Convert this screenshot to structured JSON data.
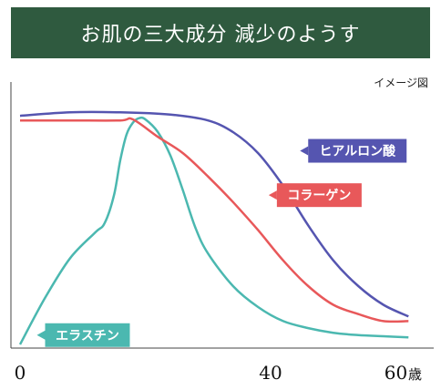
{
  "title": "お肌の三大成分 減少のようす",
  "note": "イメージ図",
  "chart_data": {
    "type": "line",
    "title": "お肌の三大成分 減少のようす",
    "xlabel": "歳",
    "ylabel": "",
    "xlim": [
      0,
      64
    ],
    "ylim": [
      0,
      100
    ],
    "x_ticks": [
      0,
      40,
      60
    ],
    "grid": false,
    "series": [
      {
        "name": "ヒアルロン酸",
        "color": "#5555b0",
        "x": [
          0,
          8,
          16,
          24,
          30,
          34,
          38,
          42,
          46,
          50,
          54,
          58,
          62
        ],
        "y": [
          98,
          99.5,
          99.5,
          98.5,
          96,
          91,
          82,
          68,
          51,
          36,
          25,
          17,
          12
        ]
      },
      {
        "name": "コラーゲン",
        "color": "#e8585a",
        "x": [
          0,
          8,
          16,
          18,
          22,
          26,
          30,
          34,
          38,
          42,
          46,
          50,
          54,
          58,
          62
        ],
        "y": [
          96,
          96,
          96,
          96.5,
          89,
          82,
          72,
          61,
          49,
          36,
          25,
          17,
          13,
          10,
          10
        ]
      },
      {
        "name": "エラスチン",
        "color": "#4bb8b0",
        "x": [
          0,
          4,
          8,
          12,
          13.5,
          15,
          16,
          17,
          18,
          19,
          20,
          22,
          24,
          26,
          28,
          30,
          34,
          38,
          42,
          46,
          50,
          54,
          58,
          62
        ],
        "y": [
          0,
          20,
          37,
          48,
          52,
          64,
          79,
          90,
          95,
          97,
          96.5,
          91,
          81,
          66,
          50,
          39,
          25,
          16,
          10,
          7,
          5,
          4,
          3.5,
          3
        ]
      }
    ],
    "labels": [
      {
        "series": "ヒアルロン酸",
        "text": "ヒアルロン酸",
        "x": 46,
        "y": 83,
        "color": "#5555b0"
      },
      {
        "series": "コラーゲン",
        "text": "コラーゲン",
        "x": 41,
        "y": 64,
        "color": "#e8585a"
      },
      {
        "series": "エラスチン",
        "text": "エラスチン",
        "x": 4,
        "y": 4,
        "color": "#4bb8b0"
      }
    ]
  }
}
